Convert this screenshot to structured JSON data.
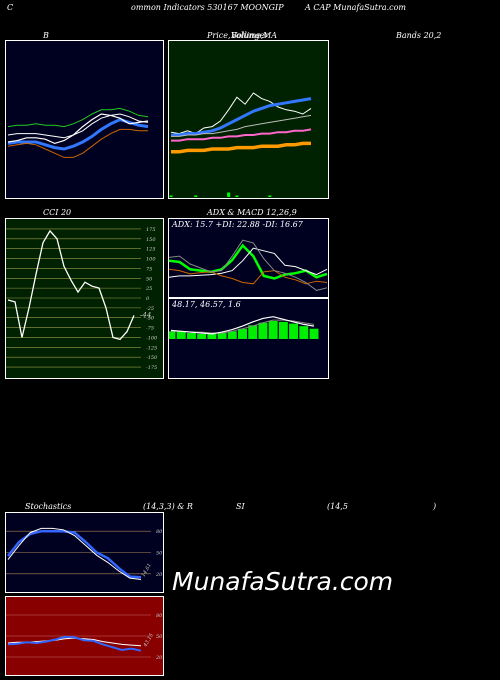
{
  "header": {
    "part1": "C",
    "part2": "ommon  Indicators 530167 MOONGIP",
    "part3": "A CAP MunafaSutra.com"
  },
  "titles": {
    "bands": "B",
    "price_a": "Price,",
    "price_b": "Volume,",
    "price_c": "Bollinger",
    "price_d": "MA",
    "bands_right": "Bands 20,2",
    "cci": "CCI 20",
    "adx_macd": "ADX  & MACD 12,26,9",
    "stoch_a": "Stochastics",
    "stoch_b": "(14,3,3) & R",
    "stoch_c": "SI",
    "stoch_d": "(14,5",
    "stoch_e": ")"
  },
  "watermark": "MunafaSutra.com",
  "colors": {
    "bollinger_bg": "#000020",
    "price_bg": "#002200",
    "rsi_bg": "#880000",
    "ma_orange": "#ff9900",
    "macd_green": "#00ff00",
    "stoch_blue": "#3366ff"
  },
  "chart_data": [
    {
      "id": "bollinger",
      "type": "line",
      "series": [
        {
          "values": [
            46,
            47,
            47,
            48,
            47,
            47,
            46,
            48,
            51,
            55,
            58,
            58,
            59,
            57,
            54,
            53
          ]
        },
        {
          "values": [
            40,
            41,
            41,
            41,
            40,
            39,
            38,
            40,
            43,
            48,
            52,
            54,
            55,
            53,
            50,
            49
          ]
        },
        {
          "values": [
            34,
            35,
            35,
            35,
            33,
            31,
            30,
            32,
            35,
            39,
            44,
            48,
            51,
            49,
            47,
            46
          ]
        },
        {
          "values": [
            32,
            33,
            34,
            33,
            30,
            27,
            24,
            24,
            27,
            32,
            37,
            41,
            44,
            44,
            43,
            43
          ]
        },
        {
          "values": [
            35,
            36,
            38,
            38,
            37,
            34,
            36,
            40,
            46,
            51,
            55,
            54,
            52,
            48,
            49,
            50
          ]
        }
      ],
      "ylim": [
        0,
        100
      ]
    },
    {
      "id": "price",
      "type": "line",
      "series": [
        {
          "values": [
            42,
            41,
            43,
            41,
            45,
            46,
            50,
            58,
            67,
            62,
            70,
            66,
            64,
            60,
            58,
            57,
            55,
            59
          ]
        },
        {
          "values": [
            40,
            40,
            41,
            41,
            42,
            43,
            45,
            48,
            51,
            54,
            57,
            59,
            61,
            62,
            63,
            64,
            65,
            66
          ]
        },
        {
          "values": [
            39,
            39,
            40,
            40,
            41,
            41,
            42,
            43,
            44,
            46,
            47,
            48,
            49,
            50,
            51,
            52,
            53,
            54
          ]
        },
        {
          "values": [
            36,
            36,
            37,
            37,
            37,
            38,
            38,
            39,
            39,
            40,
            40,
            41,
            41,
            42,
            42,
            43,
            43,
            44
          ]
        },
        {
          "values": [
            28,
            28,
            29,
            29,
            29,
            30,
            30,
            30,
            31,
            31,
            31,
            32,
            32,
            32,
            33,
            33,
            34,
            34
          ]
        }
      ],
      "volume": [
        1,
        0,
        0,
        1,
        0,
        0,
        0,
        3,
        1,
        0,
        0,
        0,
        1,
        0,
        0,
        0,
        0,
        0
      ],
      "ylim": [
        0,
        100
      ]
    },
    {
      "id": "cci",
      "type": "line",
      "title": "CCI 20",
      "y_ticks": [
        "175",
        "150",
        "125",
        "100",
        "75",
        "50",
        "25",
        "0",
        "-25",
        "-50",
        "-75",
        "-100",
        "-125",
        "-150",
        "-175"
      ],
      "values": [
        -5,
        -10,
        -100,
        -25,
        60,
        140,
        170,
        150,
        80,
        45,
        15,
        40,
        30,
        25,
        -25,
        -100,
        -105,
        -85,
        -44
      ],
      "last_label": "-44",
      "ylim": [
        -190,
        190
      ]
    },
    {
      "id": "adx",
      "type": "line",
      "title": "ADX: 15.7  +DI: 22.88  -DI: 16.67",
      "series": [
        {
          "values": [
            55,
            53,
            42,
            40,
            38,
            42,
            56,
            78,
            62,
            32,
            28,
            34,
            36,
            40,
            30,
            35
          ]
        },
        {
          "values": [
            30,
            32,
            32,
            33,
            34,
            36,
            40,
            55,
            74,
            70,
            66,
            48,
            46,
            40,
            34,
            42
          ]
        },
        {
          "values": [
            42,
            40,
            35,
            37,
            38,
            32,
            28,
            22,
            20,
            38,
            40,
            30,
            26,
            20,
            24,
            22
          ]
        },
        {
          "values": [
            60,
            62,
            50,
            44,
            38,
            40,
            62,
            86,
            82,
            58,
            40,
            36,
            30,
            22,
            10,
            14
          ]
        }
      ],
      "ylim": [
        0,
        100
      ]
    },
    {
      "id": "macd",
      "type": "bar",
      "title": "48.17,  46.57,  1.6",
      "macd_line": [
        10,
        9,
        8,
        7,
        6,
        8,
        11,
        15,
        20,
        24,
        26,
        23,
        20,
        17,
        15
      ],
      "signal_line": [
        9,
        9,
        8,
        8,
        7,
        7,
        9,
        12,
        15,
        19,
        22,
        22,
        21,
        19,
        17
      ],
      "histogram": [
        9,
        9,
        7,
        6,
        6,
        7,
        9,
        12,
        16,
        19,
        21,
        20,
        18,
        15,
        12
      ],
      "ylim": [
        0,
        35
      ]
    },
    {
      "id": "stochastics",
      "type": "line",
      "y_ticks": [
        "80",
        "50",
        "20"
      ],
      "series": [
        {
          "values": [
            45,
            65,
            76,
            80,
            80,
            80,
            78,
            65,
            50,
            42,
            28,
            16,
            15
          ]
        },
        {
          "values": [
            40,
            60,
            78,
            84,
            84,
            82,
            74,
            60,
            46,
            36,
            24,
            14,
            12
          ]
        }
      ],
      "last_label": "14.61",
      "ylim": [
        0,
        100
      ]
    },
    {
      "id": "rsi",
      "type": "line",
      "y_ticks": [
        "80",
        "50",
        "20"
      ],
      "series": [
        {
          "values": [
            40,
            41,
            41,
            42,
            43,
            44,
            46,
            47,
            46,
            45,
            42,
            40,
            38,
            37,
            36
          ]
        },
        {
          "values": [
            38,
            39,
            41,
            40,
            42,
            45,
            49,
            48,
            44,
            43,
            38,
            34,
            30,
            32,
            29
          ]
        }
      ],
      "last_label": "43.15",
      "ylim": [
        0,
        100
      ]
    }
  ]
}
